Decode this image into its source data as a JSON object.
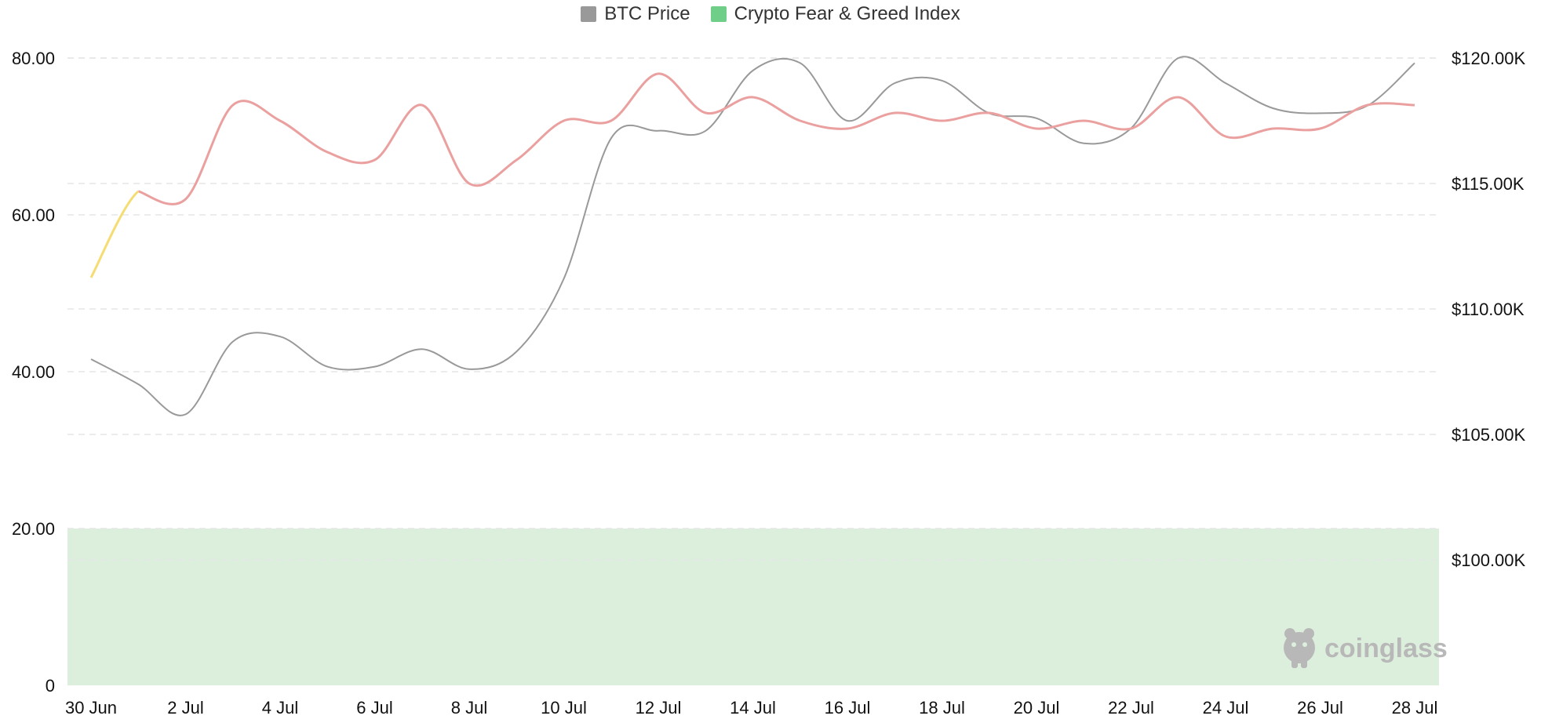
{
  "legend": [
    {
      "label": "BTC Price",
      "color": "#999999"
    },
    {
      "label": "Crypto Fear & Greed Index",
      "color": "#6fcf88"
    }
  ],
  "watermark": {
    "text": "coinglass",
    "icon": "coinglass-logo-icon"
  },
  "chart_data": {
    "type": "line",
    "x": [
      "30 Jun",
      "1 Jul",
      "2 Jul",
      "3 Jul",
      "4 Jul",
      "5 Jul",
      "6 Jul",
      "7 Jul",
      "8 Jul",
      "9 Jul",
      "10 Jul",
      "11 Jul",
      "12 Jul",
      "13 Jul",
      "14 Jul",
      "15 Jul",
      "16 Jul",
      "17 Jul",
      "18 Jul",
      "19 Jul",
      "20 Jul",
      "21 Jul",
      "22 Jul",
      "23 Jul",
      "24 Jul",
      "25 Jul",
      "26 Jul",
      "27 Jul",
      "28 Jul"
    ],
    "x_tick_labels": [
      "30 Jun",
      "2 Jul",
      "4 Jul",
      "6 Jul",
      "8 Jul",
      "10 Jul",
      "12 Jul",
      "14 Jul",
      "16 Jul",
      "18 Jul",
      "20 Jul",
      "22 Jul",
      "24 Jul",
      "26 Jul",
      "28 Jul"
    ],
    "y_left": {
      "ticks": [
        "0",
        "20.00",
        "40.00",
        "60.00",
        "80.00"
      ],
      "ylim": [
        0,
        80
      ]
    },
    "y_right": {
      "ticks": [
        "$100.00K",
        "$105.00K",
        "$110.00K",
        "$115.00K",
        "$120.00K"
      ],
      "ylim": [
        95000,
        120000
      ]
    },
    "grid": true,
    "legend_position": "top-center",
    "zones": [
      {
        "from": 0,
        "to": 20,
        "color": "#dcefdc"
      }
    ],
    "series": [
      {
        "name": "BTC Price",
        "axis": "right",
        "color": "#999999",
        "values": [
          108000,
          107000,
          105800,
          108700,
          108900,
          107700,
          107700,
          108400,
          107600,
          108300,
          111200,
          116800,
          117100,
          117100,
          119500,
          119800,
          117500,
          119000,
          119100,
          117800,
          117600,
          116600,
          117200,
          120000,
          119000,
          118000,
          117800,
          118100,
          119800
        ]
      },
      {
        "name": "Crypto Fear & Greed Index",
        "axis": "left",
        "color": "#eba0a0",
        "first_segment_color": "#f5dc73",
        "values": [
          52,
          63,
          62,
          74,
          72,
          68,
          67,
          74,
          64,
          67,
          72,
          72,
          78,
          73,
          75,
          72,
          71,
          73,
          72,
          73,
          71,
          72,
          71,
          75,
          70,
          71,
          71,
          74,
          74
        ]
      }
    ]
  }
}
